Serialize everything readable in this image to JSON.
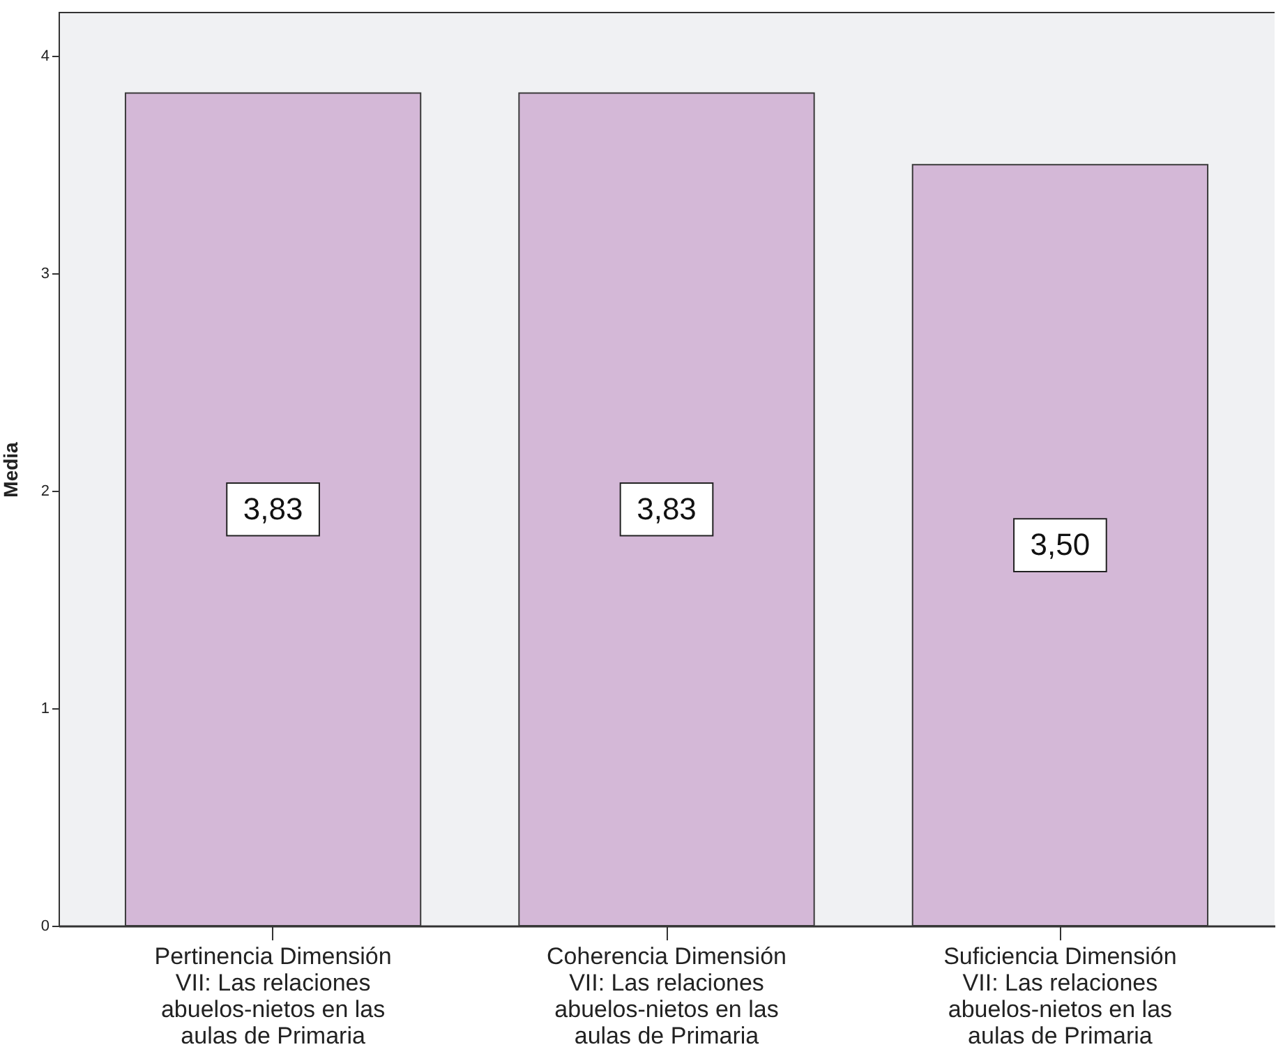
{
  "chart_data": {
    "type": "bar",
    "ylabel": "Media",
    "categories": [
      "Pertinencia Dimensión VII: Las relaciones abuelos-nietos en las aulas de Primaria",
      "Coherencia Dimensión VII: Las relaciones abuelos-nietos en las aulas de Primaria",
      "Suficiencia Dimensión VII: Las relaciones abuelos-nietos en las aulas de Primaria"
    ],
    "values": [
      3.83,
      3.83,
      3.5
    ],
    "value_labels": [
      "3,83",
      "3,83",
      "3,50"
    ],
    "color": "#d4b8d7",
    "ylim": [
      0,
      4.2
    ],
    "yticks": [
      0,
      1,
      2,
      3,
      4
    ],
    "grid": false
  }
}
